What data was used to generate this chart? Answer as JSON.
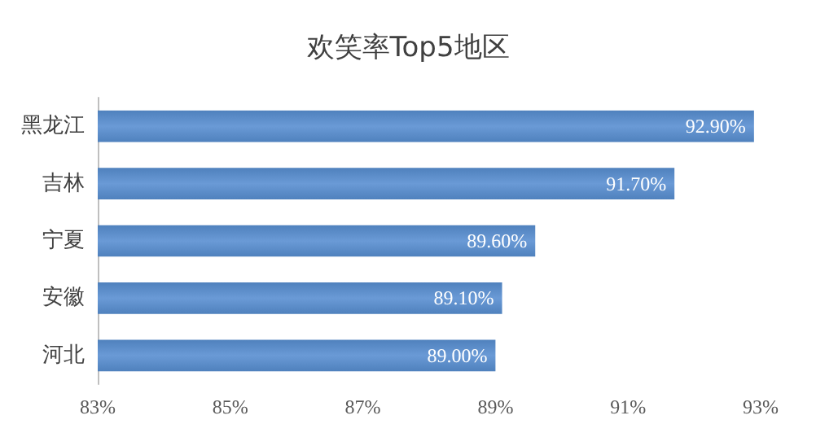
{
  "chart_data": {
    "type": "bar",
    "orientation": "horizontal",
    "title": "欢笑率Top5地区",
    "categories": [
      "黑龙江",
      "吉林",
      "宁夏",
      "安徽",
      "河北"
    ],
    "values": [
      92.9,
      91.7,
      89.6,
      89.1,
      89.0
    ],
    "value_labels": [
      "92.90%",
      "91.70%",
      "89.60%",
      "89.10%",
      "89.00%"
    ],
    "color": "#4f81bd",
    "xlim": [
      83,
      93
    ],
    "xticks": [
      {
        "value": 83,
        "label": "83%"
      },
      {
        "value": 85,
        "label": "85%"
      },
      {
        "value": 87,
        "label": "87%"
      },
      {
        "value": 89,
        "label": "89%"
      },
      {
        "value": 91,
        "label": "91%"
      },
      {
        "value": 93,
        "label": "93%"
      }
    ],
    "grid": false
  }
}
